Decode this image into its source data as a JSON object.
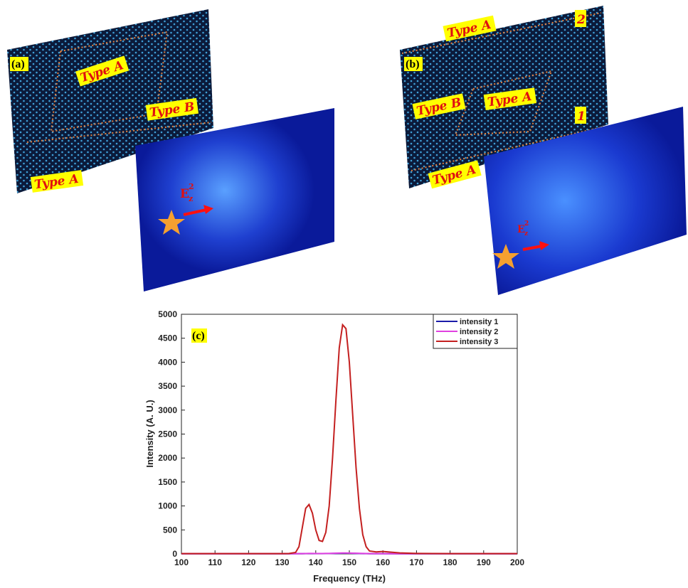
{
  "panels": {
    "a": {
      "label": "(a)",
      "type_top": "Type A",
      "type_right": "Type B",
      "type_bottom": "Type A",
      "field": {
        "base": "E",
        "sub": "z",
        "sup": "2"
      }
    },
    "b": {
      "label": "(b)",
      "type_top": "Type A",
      "type_left": "Type B",
      "type_center": "Type A",
      "type_bottom": "Type A",
      "port_1": "1",
      "port_2": "2",
      "field": {
        "base": "E",
        "sub": "z",
        "sup": "2"
      }
    }
  },
  "chart_data": {
    "type": "line",
    "panel_label": "(c)",
    "x_label": "Frequency (THz)",
    "y_label": "Intensity (A. U.)",
    "x": [
      100,
      110,
      120,
      130,
      132,
      134,
      135,
      136,
      137,
      138,
      139,
      140,
      141,
      142,
      143,
      144,
      145,
      146,
      147,
      148,
      149,
      150,
      151,
      152,
      153,
      154,
      155,
      156,
      158,
      160,
      165,
      170,
      180,
      190,
      200
    ],
    "series": [
      {
        "name": "intensity 1",
        "color": "#1a1aa8",
        "values": [
          2,
          2,
          2,
          2,
          2,
          3,
          3,
          4,
          5,
          6,
          6,
          6,
          6,
          6,
          7,
          8,
          9,
          10,
          12,
          14,
          15,
          14,
          12,
          10,
          8,
          6,
          5,
          4,
          3,
          3,
          2,
          2,
          2,
          2,
          2
        ]
      },
      {
        "name": "intensity 2",
        "color": "#e040e0",
        "values": [
          3,
          3,
          3,
          3,
          3,
          4,
          5,
          6,
          8,
          9,
          9,
          8,
          8,
          8,
          9,
          10,
          12,
          14,
          16,
          18,
          18,
          17,
          15,
          13,
          11,
          9,
          7,
          6,
          5,
          4,
          3,
          3,
          3,
          3,
          3
        ]
      },
      {
        "name": "intensity 3",
        "color": "#c42020",
        "values": [
          5,
          5,
          5,
          5,
          8,
          30,
          150,
          550,
          950,
          1030,
          850,
          500,
          280,
          260,
          450,
          1000,
          2000,
          3200,
          4300,
          4780,
          4700,
          4000,
          2900,
          1800,
          950,
          400,
          150,
          60,
          40,
          50,
          20,
          10,
          5,
          5,
          5
        ]
      }
    ],
    "xlim": [
      100,
      200
    ],
    "ylim": [
      0,
      5000
    ],
    "xticks": [
      100,
      110,
      120,
      130,
      140,
      150,
      160,
      170,
      180,
      190,
      200
    ],
    "yticks": [
      0,
      500,
      1000,
      1500,
      2000,
      2500,
      3000,
      3500,
      4000,
      4500,
      5000
    ],
    "legend": "upper right"
  }
}
